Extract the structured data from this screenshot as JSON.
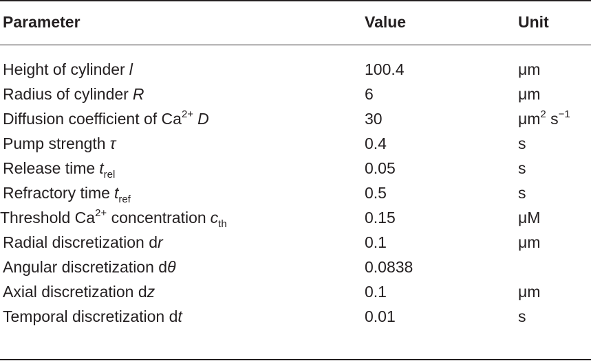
{
  "table": {
    "headers": {
      "parameter": "Parameter",
      "value": "Value",
      "unit": "Unit"
    },
    "rows": [
      {
        "label": "Height of cylinder",
        "symbol": "l",
        "value": "100.4",
        "unit": "μm"
      },
      {
        "label": "Radius of cylinder",
        "symbol": "R",
        "value": "6",
        "unit": "μm"
      },
      {
        "label_pre": "Diffusion coefficient of Ca",
        "label_sup": "2+",
        "symbol": "D",
        "value": "30",
        "unit_pre": "μm",
        "unit_sup": "2",
        "unit_mid": " s",
        "unit_sup2": "−1"
      },
      {
        "label": "Pump strength",
        "symbol": "τ",
        "value": "0.4",
        "unit": "s"
      },
      {
        "label": "Release time",
        "symbol": "t",
        "symbol_sub": "rel",
        "value": "0.05",
        "unit": "s"
      },
      {
        "label": "Refractory time",
        "symbol": "t",
        "symbol_sub": "ref",
        "value": "0.5",
        "unit": "s"
      },
      {
        "label_pre": "Threshold Ca",
        "label_sup": "2+",
        "label_post": " concentration",
        "symbol": "c",
        "symbol_sub": "th",
        "value": "0.15",
        "unit": "μM"
      },
      {
        "label": "Radial discretization d",
        "symbol": "r",
        "value": "0.1",
        "unit": "μm"
      },
      {
        "label": "Angular discretization d",
        "symbol": "θ",
        "value": "0.0838",
        "unit": ""
      },
      {
        "label": "Axial discretization d",
        "symbol": "z",
        "value": "0.1",
        "unit": "μm"
      },
      {
        "label": "Temporal discretization d",
        "symbol": "t",
        "value": "0.01",
        "unit": "s"
      }
    ]
  }
}
